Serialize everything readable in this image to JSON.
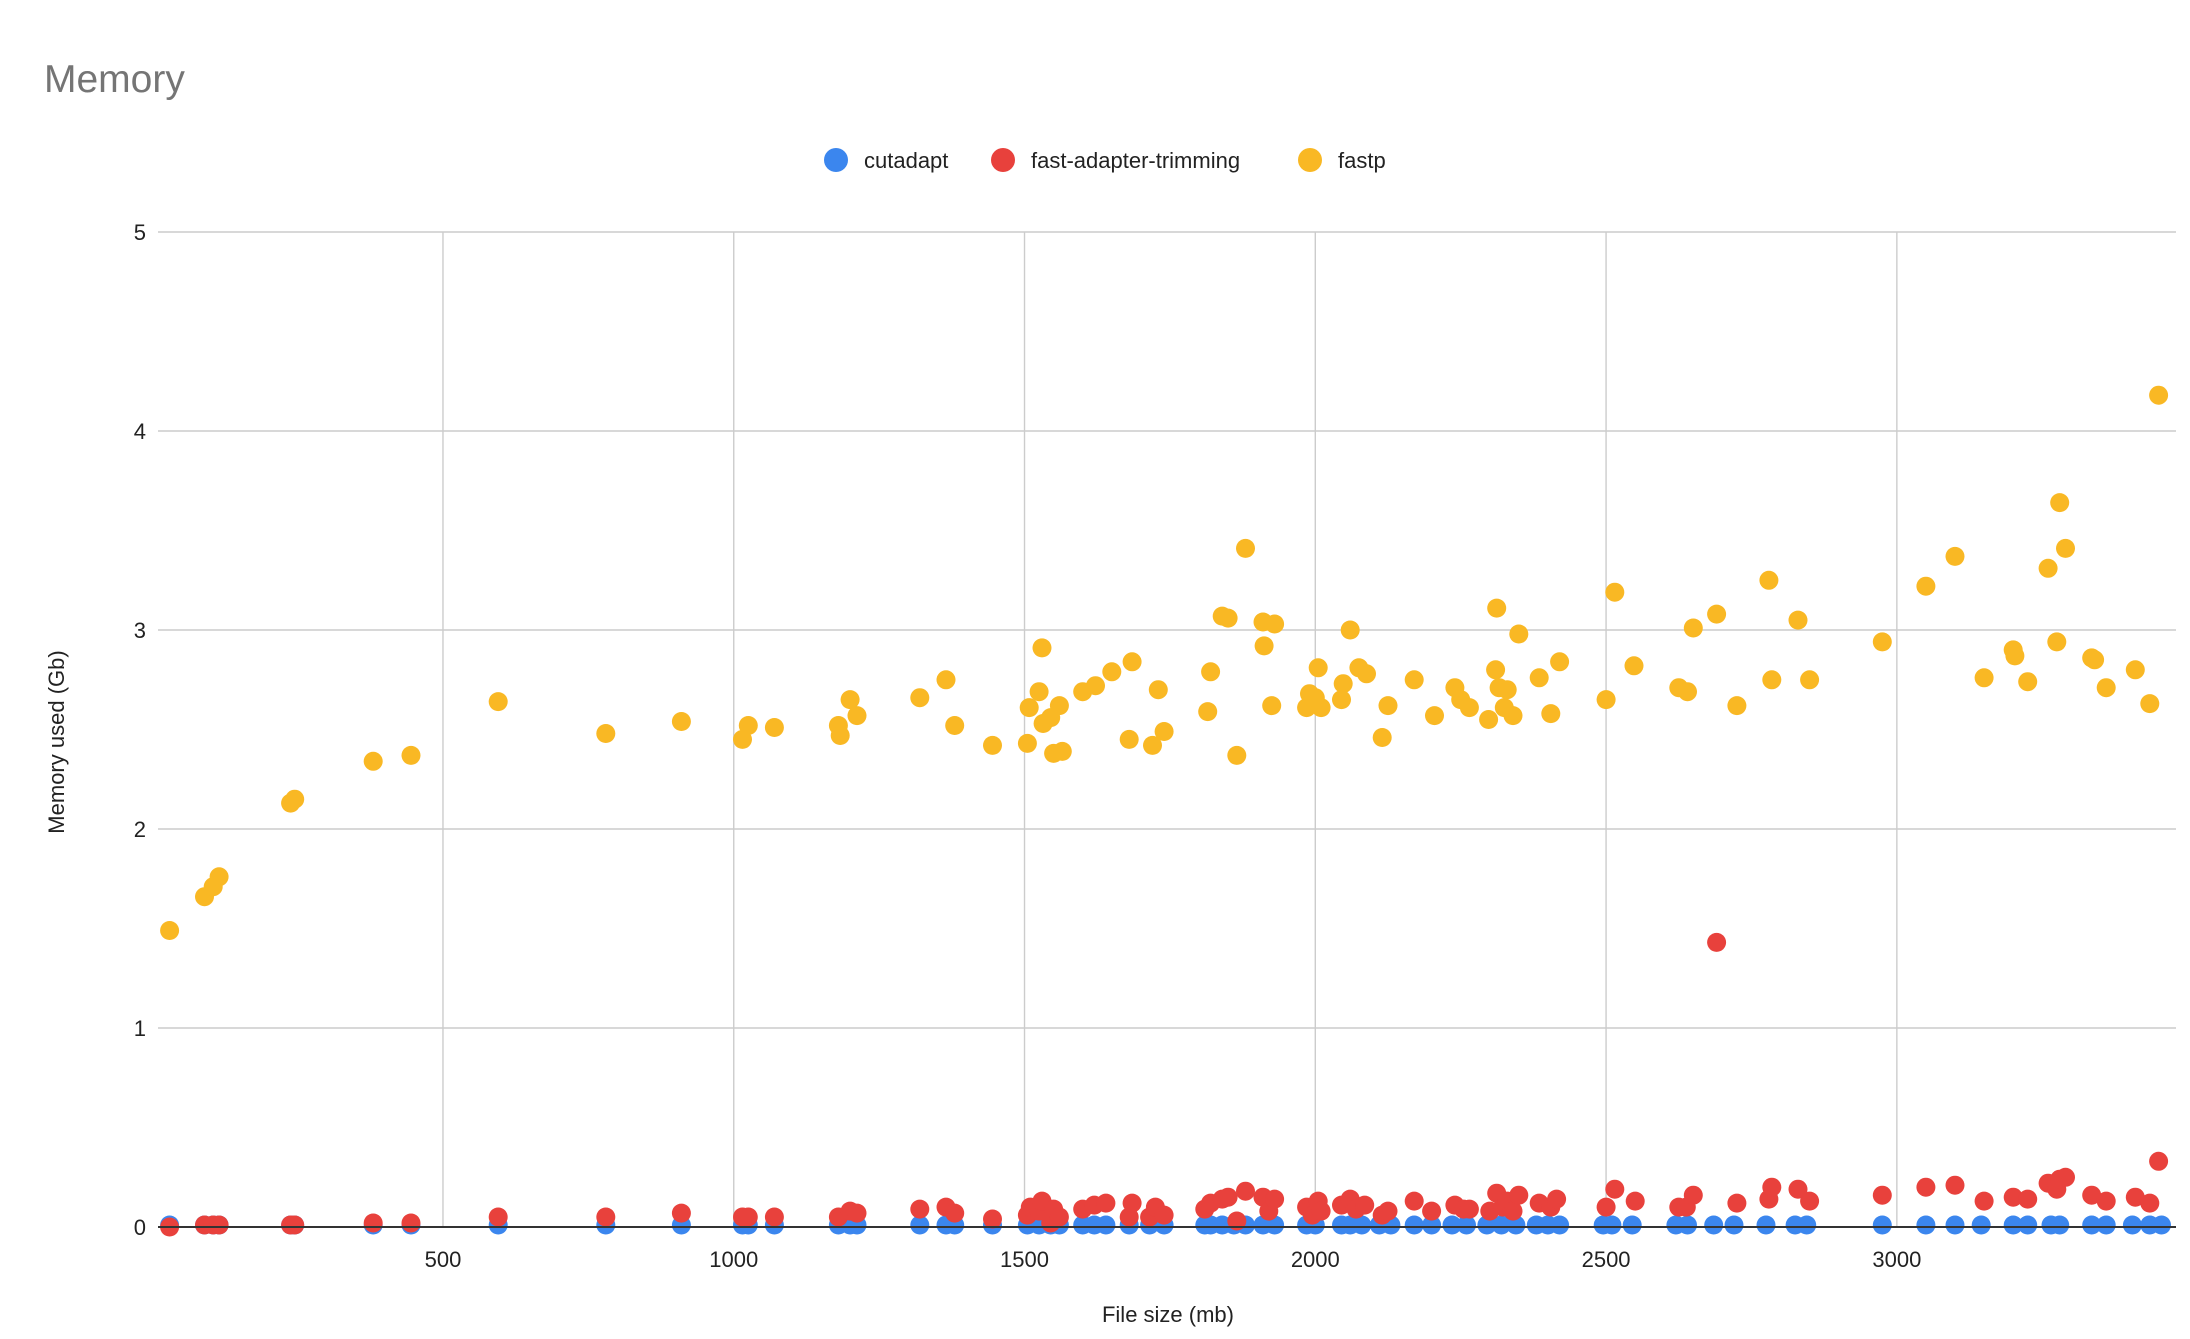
{
  "chart_data": {
    "type": "scatter",
    "title": "Memory",
    "xlabel": "File size (mb)",
    "ylabel": "Memory used (Gb)",
    "xlim": [
      10,
      3480
    ],
    "ylim": [
      0,
      5
    ],
    "x_ticks": [
      500,
      1000,
      1500,
      2000,
      2500,
      3000
    ],
    "y_ticks": [
      0,
      1,
      2,
      3,
      4,
      5
    ],
    "grid": true,
    "legend_position": "top-center",
    "series": [
      {
        "name": "cutadapt",
        "color": "#3b86ee",
        "points": [
          [
            30,
            0.01
          ],
          [
            90,
            0.01
          ],
          [
            105,
            0.01
          ],
          [
            115,
            0.01
          ],
          [
            238,
            0.01
          ],
          [
            245,
            0.01
          ],
          [
            380,
            0.01
          ],
          [
            445,
            0.01
          ],
          [
            595,
            0.01
          ],
          [
            780,
            0.01
          ],
          [
            910,
            0.01
          ],
          [
            1015,
            0.01
          ],
          [
            1025,
            0.01
          ],
          [
            1070,
            0.01
          ],
          [
            1180,
            0.01
          ],
          [
            1200,
            0.01
          ],
          [
            1212,
            0.01
          ],
          [
            1320,
            0.01
          ],
          [
            1365,
            0.01
          ],
          [
            1380,
            0.01
          ],
          [
            1445,
            0.01
          ],
          [
            1505,
            0.01
          ],
          [
            1525,
            0.01
          ],
          [
            1545,
            0.01
          ],
          [
            1560,
            0.01
          ],
          [
            1600,
            0.01
          ],
          [
            1620,
            0.01
          ],
          [
            1640,
            0.01
          ],
          [
            1680,
            0.01
          ],
          [
            1715,
            0.01
          ],
          [
            1740,
            0.01
          ],
          [
            1810,
            0.01
          ],
          [
            1820,
            0.01
          ],
          [
            1840,
            0.01
          ],
          [
            1860,
            0.01
          ],
          [
            1880,
            0.01
          ],
          [
            1910,
            0.01
          ],
          [
            1930,
            0.01
          ],
          [
            1985,
            0.01
          ],
          [
            2000,
            0.01
          ],
          [
            2045,
            0.01
          ],
          [
            2060,
            0.01
          ],
          [
            2080,
            0.01
          ],
          [
            2110,
            0.01
          ],
          [
            2130,
            0.01
          ],
          [
            2170,
            0.01
          ],
          [
            2200,
            0.01
          ],
          [
            2235,
            0.01
          ],
          [
            2260,
            0.01
          ],
          [
            2295,
            0.01
          ],
          [
            2320,
            0.01
          ],
          [
            2345,
            0.01
          ],
          [
            2380,
            0.01
          ],
          [
            2400,
            0.01
          ],
          [
            2420,
            0.01
          ],
          [
            2495,
            0.01
          ],
          [
            2510,
            0.01
          ],
          [
            2545,
            0.01
          ],
          [
            2620,
            0.01
          ],
          [
            2640,
            0.01
          ],
          [
            2685,
            0.01
          ],
          [
            2720,
            0.01
          ],
          [
            2775,
            0.01
          ],
          [
            2825,
            0.01
          ],
          [
            2845,
            0.01
          ],
          [
            2975,
            0.01
          ],
          [
            3050,
            0.01
          ],
          [
            3100,
            0.01
          ],
          [
            3145,
            0.01
          ],
          [
            3200,
            0.01
          ],
          [
            3225,
            0.01
          ],
          [
            3265,
            0.01
          ],
          [
            3280,
            0.01
          ],
          [
            3335,
            0.01
          ],
          [
            3360,
            0.01
          ],
          [
            3405,
            0.01
          ],
          [
            3435,
            0.01
          ],
          [
            3455,
            0.01
          ]
        ]
      },
      {
        "name": "fast-adapter-trimming",
        "color": "#e8413c",
        "points": [
          [
            30,
            0.0
          ],
          [
            90,
            0.01
          ],
          [
            105,
            0.01
          ],
          [
            115,
            0.01
          ],
          [
            238,
            0.01
          ],
          [
            245,
            0.01
          ],
          [
            380,
            0.02
          ],
          [
            445,
            0.02
          ],
          [
            595,
            0.05
          ],
          [
            780,
            0.05
          ],
          [
            910,
            0.07
          ],
          [
            1015,
            0.05
          ],
          [
            1025,
            0.05
          ],
          [
            1070,
            0.05
          ],
          [
            1180,
            0.05
          ],
          [
            1200,
            0.08
          ],
          [
            1212,
            0.07
          ],
          [
            1320,
            0.09
          ],
          [
            1365,
            0.1
          ],
          [
            1380,
            0.07
          ],
          [
            1445,
            0.04
          ],
          [
            1505,
            0.06
          ],
          [
            1510,
            0.1
          ],
          [
            1525,
            0.08
          ],
          [
            1530,
            0.13
          ],
          [
            1545,
            0.02
          ],
          [
            1550,
            0.09
          ],
          [
            1560,
            0.05
          ],
          [
            1600,
            0.09
          ],
          [
            1620,
            0.11
          ],
          [
            1640,
            0.12
          ],
          [
            1680,
            0.05
          ],
          [
            1685,
            0.12
          ],
          [
            1715,
            0.05
          ],
          [
            1725,
            0.1
          ],
          [
            1740,
            0.06
          ],
          [
            1810,
            0.09
          ],
          [
            1820,
            0.12
          ],
          [
            1840,
            0.14
          ],
          [
            1850,
            0.15
          ],
          [
            1865,
            0.03
          ],
          [
            1880,
            0.18
          ],
          [
            1910,
            0.15
          ],
          [
            1920,
            0.08
          ],
          [
            1930,
            0.14
          ],
          [
            1985,
            0.1
          ],
          [
            1995,
            0.06
          ],
          [
            2005,
            0.13
          ],
          [
            2010,
            0.08
          ],
          [
            2045,
            0.11
          ],
          [
            2060,
            0.14
          ],
          [
            2070,
            0.09
          ],
          [
            2085,
            0.11
          ],
          [
            2115,
            0.06
          ],
          [
            2125,
            0.08
          ],
          [
            2170,
            0.13
          ],
          [
            2200,
            0.08
          ],
          [
            2240,
            0.11
          ],
          [
            2255,
            0.09
          ],
          [
            2265,
            0.09
          ],
          [
            2300,
            0.08
          ],
          [
            2312,
            0.17
          ],
          [
            2322,
            0.1
          ],
          [
            2330,
            0.13
          ],
          [
            2340,
            0.08
          ],
          [
            2350,
            0.16
          ],
          [
            2385,
            0.12
          ],
          [
            2405,
            0.1
          ],
          [
            2415,
            0.14
          ],
          [
            2500,
            0.1
          ],
          [
            2515,
            0.19
          ],
          [
            2550,
            0.13
          ],
          [
            2625,
            0.1
          ],
          [
            2638,
            0.1
          ],
          [
            2650,
            0.16
          ],
          [
            2690,
            1.43
          ],
          [
            2725,
            0.12
          ],
          [
            2780,
            0.14
          ],
          [
            2785,
            0.2
          ],
          [
            2830,
            0.19
          ],
          [
            2850,
            0.13
          ],
          [
            2975,
            0.16
          ],
          [
            3050,
            0.2
          ],
          [
            3100,
            0.21
          ],
          [
            3150,
            0.13
          ],
          [
            3200,
            0.15
          ],
          [
            3225,
            0.14
          ],
          [
            3260,
            0.22
          ],
          [
            3275,
            0.19
          ],
          [
            3280,
            0.24
          ],
          [
            3290,
            0.25
          ],
          [
            3335,
            0.16
          ],
          [
            3360,
            0.13
          ],
          [
            3410,
            0.15
          ],
          [
            3435,
            0.12
          ],
          [
            3450,
            0.33
          ]
        ]
      },
      {
        "name": "fastp",
        "color": "#f9b824",
        "points": [
          [
            30,
            1.49
          ],
          [
            90,
            1.66
          ],
          [
            105,
            1.71
          ],
          [
            115,
            1.76
          ],
          [
            238,
            2.13
          ],
          [
            245,
            2.15
          ],
          [
            380,
            2.34
          ],
          [
            445,
            2.37
          ],
          [
            595,
            2.64
          ],
          [
            780,
            2.48
          ],
          [
            910,
            2.54
          ],
          [
            1015,
            2.45
          ],
          [
            1025,
            2.52
          ],
          [
            1070,
            2.51
          ],
          [
            1180,
            2.52
          ],
          [
            1183,
            2.47
          ],
          [
            1200,
            2.65
          ],
          [
            1212,
            2.57
          ],
          [
            1320,
            2.66
          ],
          [
            1365,
            2.75
          ],
          [
            1380,
            2.52
          ],
          [
            1445,
            2.42
          ],
          [
            1505,
            2.43
          ],
          [
            1508,
            2.61
          ],
          [
            1525,
            2.69
          ],
          [
            1530,
            2.91
          ],
          [
            1532,
            2.53
          ],
          [
            1545,
            2.56
          ],
          [
            1550,
            2.38
          ],
          [
            1560,
            2.62
          ],
          [
            1565,
            2.39
          ],
          [
            1600,
            2.69
          ],
          [
            1622,
            2.72
          ],
          [
            1650,
            2.79
          ],
          [
            1680,
            2.45
          ],
          [
            1685,
            2.84
          ],
          [
            1720,
            2.42
          ],
          [
            1730,
            2.7
          ],
          [
            1740,
            2.49
          ],
          [
            1815,
            2.59
          ],
          [
            1820,
            2.79
          ],
          [
            1840,
            3.07
          ],
          [
            1850,
            3.06
          ],
          [
            1865,
            2.37
          ],
          [
            1880,
            3.41
          ],
          [
            1910,
            3.04
          ],
          [
            1912,
            2.92
          ],
          [
            1925,
            2.62
          ],
          [
            1930,
            3.03
          ],
          [
            1985,
            2.61
          ],
          [
            1990,
            2.68
          ],
          [
            2000,
            2.66
          ],
          [
            2005,
            2.81
          ],
          [
            2010,
            2.61
          ],
          [
            2045,
            2.65
          ],
          [
            2048,
            2.73
          ],
          [
            2060,
            3.0
          ],
          [
            2075,
            2.81
          ],
          [
            2088,
            2.78
          ],
          [
            2115,
            2.46
          ],
          [
            2125,
            2.62
          ],
          [
            2170,
            2.75
          ],
          [
            2205,
            2.57
          ],
          [
            2240,
            2.71
          ],
          [
            2250,
            2.65
          ],
          [
            2265,
            2.61
          ],
          [
            2298,
            2.55
          ],
          [
            2310,
            2.8
          ],
          [
            2312,
            3.11
          ],
          [
            2316,
            2.71
          ],
          [
            2325,
            2.61
          ],
          [
            2330,
            2.7
          ],
          [
            2340,
            2.57
          ],
          [
            2350,
            2.98
          ],
          [
            2385,
            2.76
          ],
          [
            2405,
            2.58
          ],
          [
            2420,
            2.84
          ],
          [
            2500,
            2.65
          ],
          [
            2515,
            3.19
          ],
          [
            2548,
            2.82
          ],
          [
            2625,
            2.71
          ],
          [
            2640,
            2.69
          ],
          [
            2650,
            3.01
          ],
          [
            2690,
            3.08
          ],
          [
            2725,
            2.62
          ],
          [
            2780,
            3.25
          ],
          [
            2785,
            2.75
          ],
          [
            2830,
            3.05
          ],
          [
            2850,
            2.75
          ],
          [
            2975,
            2.94
          ],
          [
            3050,
            3.22
          ],
          [
            3100,
            3.37
          ],
          [
            3150,
            2.76
          ],
          [
            3200,
            2.9
          ],
          [
            3203,
            2.87
          ],
          [
            3225,
            2.74
          ],
          [
            3260,
            3.31
          ],
          [
            3275,
            2.94
          ],
          [
            3280,
            3.64
          ],
          [
            3290,
            3.41
          ],
          [
            3335,
            2.86
          ],
          [
            3340,
            2.85
          ],
          [
            3360,
            2.71
          ],
          [
            3410,
            2.8
          ],
          [
            3435,
            2.63
          ],
          [
            3450,
            4.18
          ]
        ]
      }
    ]
  }
}
